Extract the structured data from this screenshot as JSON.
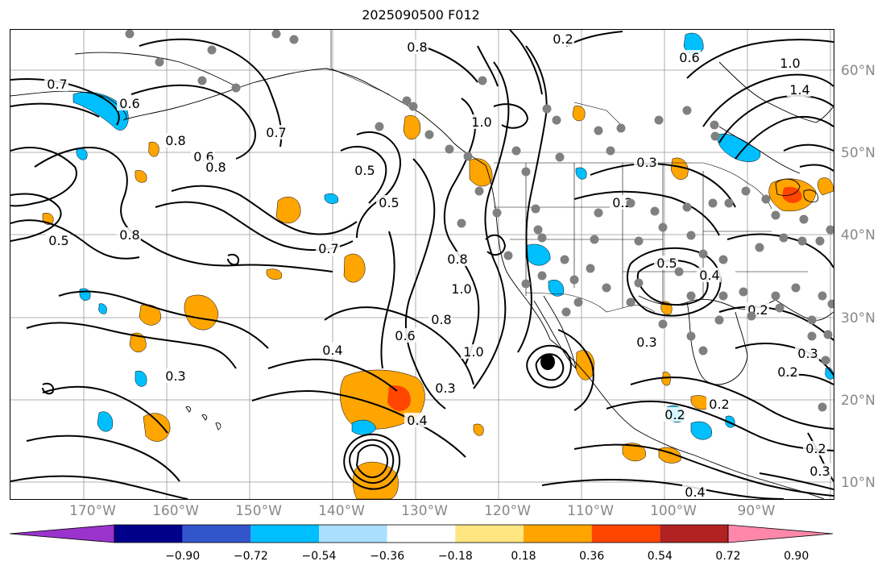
{
  "title": "2025090500 F012",
  "lat_labels": [
    "60°N",
    "50°N",
    "40°N",
    "30°N",
    "20°N",
    "10°N"
  ],
  "lon_labels": [
    "170°W",
    "160°W",
    "150°W",
    "140°W",
    "130°W",
    "120°W",
    "110°W",
    "100°W",
    "90°W"
  ],
  "colorbar": {
    "colors": [
      "#9a33cc",
      "#00008b",
      "#3355cc",
      "#00bfff",
      "#aadfff",
      "#ffffff",
      "#ffe680",
      "#ffa500",
      "#ff4500",
      "#b22222",
      "#ff88aa"
    ],
    "tick_labels": [
      "−0.90",
      "−0.72",
      "−0.54",
      "−0.36",
      "−0.18",
      "0.18",
      "0.36",
      "0.54",
      "0.72",
      "0.90"
    ]
  },
  "contour_labels": [
    "0.2",
    "0.8",
    "0.6",
    "1.0",
    "1.4",
    "0.7",
    "0.6",
    "0.8",
    "0.6",
    "0.5",
    "0.7",
    "1.0",
    "0.8",
    "0.5",
    "0.8",
    "0.7",
    "0.8",
    "1.0",
    "0.3",
    "0.2",
    "0.5",
    "0.4",
    "0.3",
    "0.2",
    "0.6",
    "0.8",
    "1.0",
    "0.4",
    "0.3",
    "0.4",
    "0.3",
    "0.2",
    "0.3",
    "0.2",
    "0.2",
    "0.4",
    "0.3",
    "0.2",
    "0.5"
  ],
  "colors": {
    "positive_light": "#ffe680",
    "positive": "#ffa500",
    "positive_strong": "#ff4500",
    "negative": "#00bfff",
    "negative_light": "#aadfff",
    "marker": "#808080",
    "grid": "#999999",
    "contour": "#000000"
  }
}
